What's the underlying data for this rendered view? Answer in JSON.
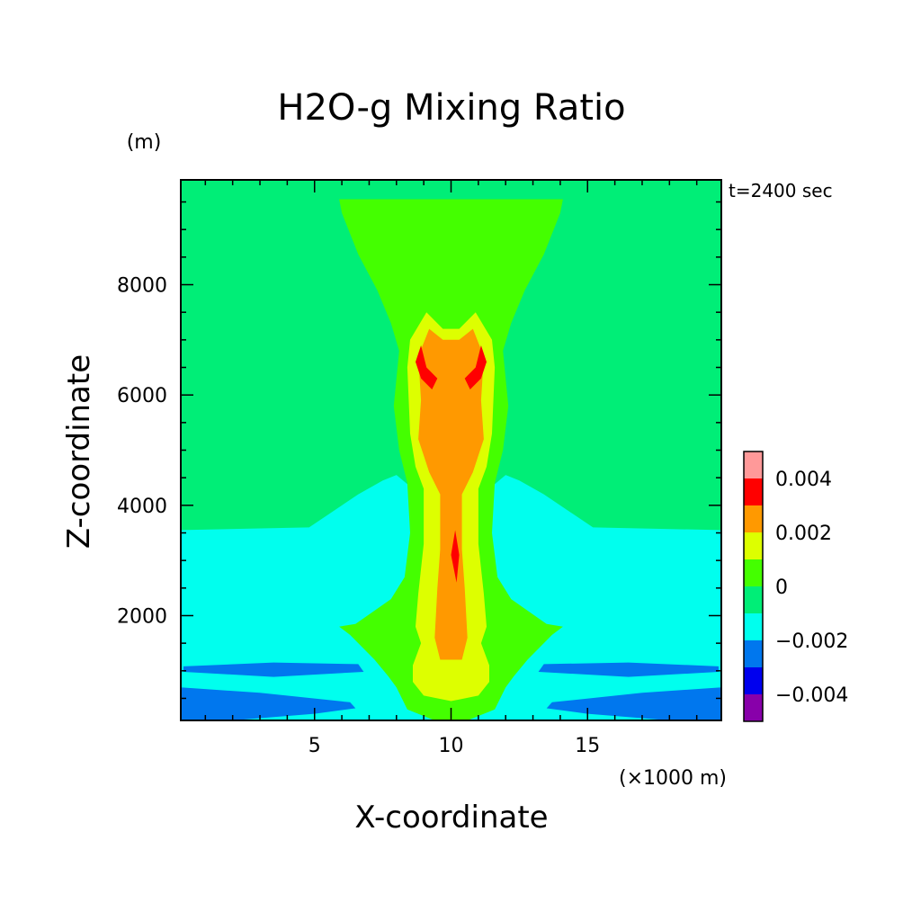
{
  "chart_data": {
    "type": "heatmap",
    "title": "H2O-g Mixing Ratio",
    "xlabel": "X-coordinate",
    "ylabel": "Z-coordinate",
    "x_unit_label": "(×1000 m)",
    "y_unit_label": "(m)",
    "annotation": "t=2400 sec",
    "xlim": [
      0.1,
      19.9
    ],
    "ylim": [
      100,
      9900
    ],
    "x_ticks": [
      5,
      10,
      15
    ],
    "y_ticks": [
      2000,
      4000,
      6000,
      8000
    ],
    "x_tick_labels": [
      "5",
      "10",
      "15"
    ],
    "y_tick_labels": [
      "2000",
      "4000",
      "6000",
      "8000"
    ],
    "colorbar": {
      "levels": [
        -0.005,
        -0.004,
        -0.003,
        -0.002,
        -0.001,
        0,
        0.001,
        0.002,
        0.003,
        0.004,
        0.005
      ],
      "colors": [
        "#8800aa",
        "#0000ee",
        "#0077ee",
        "#00ffee",
        "#00ee77",
        "#44ff00",
        "#ddff00",
        "#ff9900",
        "#ff0000",
        "#ff9999"
      ],
      "tick_values": [
        0.004,
        0.002,
        0,
        -0.002,
        -0.004
      ],
      "tick_labels": [
        "0.004",
        "0.002",
        "0",
        "−0.002",
        "−0.004"
      ]
    },
    "background_value": -0.0005,
    "regions": [
      {
        "value": -0.0015,
        "polygon": [
          [
            0.1,
            100
          ],
          [
            0.1,
            3550
          ],
          [
            4.8,
            3600
          ],
          [
            6.6,
            4200
          ],
          [
            7.5,
            4450
          ],
          [
            8.0,
            4550
          ],
          [
            8.6,
            4300
          ],
          [
            9.0,
            4000
          ],
          [
            11.0,
            4000
          ],
          [
            11.4,
            4300
          ],
          [
            12.0,
            4550
          ],
          [
            12.5,
            4450
          ],
          [
            13.4,
            4200
          ],
          [
            15.2,
            3600
          ],
          [
            19.9,
            3550
          ],
          [
            19.9,
            100
          ]
        ]
      },
      {
        "value": -0.0025,
        "polygon": [
          [
            0.2,
            1080
          ],
          [
            3.5,
            1150
          ],
          [
            6.6,
            1120
          ],
          [
            6.8,
            980
          ],
          [
            3.5,
            890
          ],
          [
            0.2,
            980
          ]
        ]
      },
      {
        "value": -0.0025,
        "polygon": [
          [
            13.4,
            1120
          ],
          [
            16.5,
            1150
          ],
          [
            19.8,
            1080
          ],
          [
            19.8,
            980
          ],
          [
            16.5,
            890
          ],
          [
            13.2,
            980
          ]
        ]
      },
      {
        "value": -0.0025,
        "polygon": [
          [
            0.1,
            100
          ],
          [
            0.1,
            700
          ],
          [
            3.0,
            600
          ],
          [
            6.3,
            430
          ],
          [
            6.5,
            320
          ],
          [
            5.0,
            220
          ],
          [
            3.0,
            140
          ],
          [
            2.0,
            100
          ]
        ]
      },
      {
        "value": -0.0025,
        "polygon": [
          [
            19.9,
            100
          ],
          [
            19.9,
            700
          ],
          [
            17.0,
            600
          ],
          [
            13.7,
            430
          ],
          [
            13.5,
            320
          ],
          [
            15.0,
            220
          ],
          [
            17.0,
            140
          ],
          [
            18.0,
            100
          ]
        ]
      },
      {
        "value": -0.0005,
        "polygon": [
          [
            9.6,
            120
          ],
          [
            10.4,
            120
          ],
          [
            10.6,
            360
          ],
          [
            10.0,
            400
          ],
          [
            9.4,
            360
          ]
        ]
      },
      {
        "value": 0.0005,
        "polygon": [
          [
            5.9,
            9550
          ],
          [
            14.1,
            9550
          ],
          [
            14.0,
            9300
          ],
          [
            13.4,
            8550
          ],
          [
            12.7,
            7900
          ],
          [
            12.2,
            7300
          ],
          [
            11.9,
            6800
          ],
          [
            12.1,
            5800
          ],
          [
            11.9,
            5000
          ],
          [
            11.6,
            4400
          ],
          [
            11.5,
            3500
          ],
          [
            11.7,
            2700
          ],
          [
            12.2,
            2300
          ],
          [
            13.5,
            1850
          ],
          [
            14.1,
            1800
          ],
          [
            13.7,
            1650
          ],
          [
            12.8,
            1200
          ],
          [
            12.3,
            900
          ],
          [
            12.0,
            700
          ],
          [
            11.6,
            300
          ],
          [
            10.6,
            100
          ],
          [
            9.4,
            100
          ],
          [
            8.4,
            300
          ],
          [
            8.0,
            700
          ],
          [
            7.7,
            900
          ],
          [
            7.2,
            1200
          ],
          [
            6.3,
            1650
          ],
          [
            5.9,
            1800
          ],
          [
            6.5,
            1850
          ],
          [
            7.8,
            2300
          ],
          [
            8.3,
            2700
          ],
          [
            8.5,
            3500
          ],
          [
            8.4,
            4400
          ],
          [
            8.1,
            5000
          ],
          [
            7.9,
            5800
          ],
          [
            8.1,
            6800
          ],
          [
            7.8,
            7300
          ],
          [
            7.3,
            7900
          ],
          [
            6.6,
            8550
          ],
          [
            6.0,
            9300
          ]
        ]
      },
      {
        "value": 0.0015,
        "polygon": [
          [
            9.1,
            7500
          ],
          [
            9.7,
            7200
          ],
          [
            10.3,
            7200
          ],
          [
            10.9,
            7500
          ],
          [
            11.5,
            7000
          ],
          [
            11.6,
            6500
          ],
          [
            11.5,
            5300
          ],
          [
            11.3,
            4700
          ],
          [
            11.0,
            4300
          ],
          [
            11.0,
            3300
          ],
          [
            11.2,
            2400
          ],
          [
            11.3,
            1800
          ],
          [
            11.1,
            1500
          ],
          [
            11.4,
            1100
          ],
          [
            11.4,
            800
          ],
          [
            11.0,
            550
          ],
          [
            10.0,
            450
          ],
          [
            9.0,
            550
          ],
          [
            8.6,
            800
          ],
          [
            8.6,
            1100
          ],
          [
            8.9,
            1500
          ],
          [
            8.7,
            1800
          ],
          [
            8.8,
            2400
          ],
          [
            9.0,
            3300
          ],
          [
            9.0,
            4300
          ],
          [
            8.7,
            4700
          ],
          [
            8.5,
            5300
          ],
          [
            8.4,
            6500
          ],
          [
            8.5,
            7000
          ]
        ]
      },
      {
        "value": 0.0025,
        "polygon": [
          [
            9.2,
            7200
          ],
          [
            9.7,
            7000
          ],
          [
            10.3,
            7000
          ],
          [
            10.8,
            7200
          ],
          [
            11.2,
            6700
          ],
          [
            11.1,
            5900
          ],
          [
            11.2,
            5200
          ],
          [
            10.8,
            4600
          ],
          [
            10.4,
            4200
          ],
          [
            10.4,
            3200
          ],
          [
            10.5,
            2500
          ],
          [
            10.6,
            1600
          ],
          [
            10.4,
            1200
          ],
          [
            9.6,
            1200
          ],
          [
            9.4,
            1600
          ],
          [
            9.5,
            2500
          ],
          [
            9.6,
            3200
          ],
          [
            9.6,
            4200
          ],
          [
            9.2,
            4600
          ],
          [
            8.8,
            5200
          ],
          [
            8.9,
            5900
          ],
          [
            8.8,
            6700
          ]
        ]
      },
      {
        "value": 0.0035,
        "polygon": [
          [
            8.9,
            6900
          ],
          [
            9.1,
            6500
          ],
          [
            9.5,
            6300
          ],
          [
            9.3,
            6100
          ],
          [
            8.9,
            6300
          ],
          [
            8.7,
            6600
          ]
        ]
      },
      {
        "value": 0.0035,
        "polygon": [
          [
            11.1,
            6900
          ],
          [
            10.9,
            6500
          ],
          [
            10.5,
            6300
          ],
          [
            10.7,
            6100
          ],
          [
            11.1,
            6300
          ],
          [
            11.3,
            6600
          ]
        ]
      },
      {
        "value": 0.0035,
        "polygon": [
          [
            10.15,
            3550
          ],
          [
            10.3,
            3100
          ],
          [
            10.2,
            2600
          ],
          [
            10.0,
            3100
          ]
        ]
      }
    ]
  }
}
